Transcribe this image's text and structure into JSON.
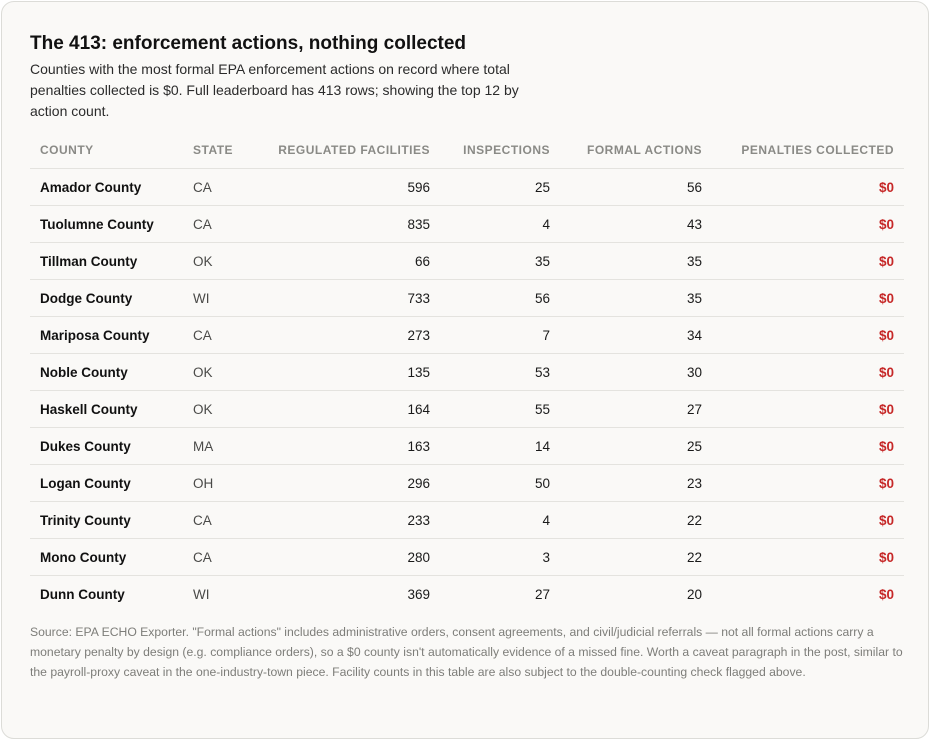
{
  "heading": {
    "title": "The 413: enforcement actions, nothing collected",
    "subtitle": "Counties with the most formal EPA enforcement actions on record where total penalties collected is $0. Full leaderboard has 413 rows; showing the top 12 by action count."
  },
  "table": {
    "columns": [
      "COUNTY",
      "STATE",
      "REGULATED FACILITIES",
      "INSPECTIONS",
      "FORMAL ACTIONS",
      "PENALTIES COLLECTED"
    ],
    "rows": [
      {
        "county": "Amador County",
        "state": "CA",
        "facilities": "596",
        "inspections": "25",
        "formal_actions": "56",
        "penalties": "$0"
      },
      {
        "county": "Tuolumne County",
        "state": "CA",
        "facilities": "835",
        "inspections": "4",
        "formal_actions": "43",
        "penalties": "$0"
      },
      {
        "county": "Tillman County",
        "state": "OK",
        "facilities": "66",
        "inspections": "35",
        "formal_actions": "35",
        "penalties": "$0"
      },
      {
        "county": "Dodge County",
        "state": "WI",
        "facilities": "733",
        "inspections": "56",
        "formal_actions": "35",
        "penalties": "$0"
      },
      {
        "county": "Mariposa County",
        "state": "CA",
        "facilities": "273",
        "inspections": "7",
        "formal_actions": "34",
        "penalties": "$0"
      },
      {
        "county": "Noble County",
        "state": "OK",
        "facilities": "135",
        "inspections": "53",
        "formal_actions": "30",
        "penalties": "$0"
      },
      {
        "county": "Haskell County",
        "state": "OK",
        "facilities": "164",
        "inspections": "55",
        "formal_actions": "27",
        "penalties": "$0"
      },
      {
        "county": "Dukes County",
        "state": "MA",
        "facilities": "163",
        "inspections": "14",
        "formal_actions": "25",
        "penalties": "$0"
      },
      {
        "county": "Logan County",
        "state": "OH",
        "facilities": "296",
        "inspections": "50",
        "formal_actions": "23",
        "penalties": "$0"
      },
      {
        "county": "Trinity County",
        "state": "CA",
        "facilities": "233",
        "inspections": "4",
        "formal_actions": "22",
        "penalties": "$0"
      },
      {
        "county": "Mono County",
        "state": "CA",
        "facilities": "280",
        "inspections": "3",
        "formal_actions": "22",
        "penalties": "$0"
      },
      {
        "county": "Dunn County",
        "state": "WI",
        "facilities": "369",
        "inspections": "27",
        "formal_actions": "20",
        "penalties": "$0"
      }
    ]
  },
  "footnote": "Source: EPA ECHO Exporter. \"Formal actions\" includes administrative orders, consent agreements, and civil/judicial referrals — not all formal actions carry a monetary penalty by design (e.g. compliance orders), so a $0 county isn't automatically evidence of a missed fine. Worth a caveat paragraph in the post, similar to the payroll-proxy caveat in the one-industry-town piece. Facility counts in this table are also subject to the double-counting check flagged above.",
  "colors": {
    "penalty_zero": "#c62828",
    "card_background": "#faf9f7",
    "card_border": "#dcdcd8",
    "header_text": "#8a8a86",
    "row_divider": "#e4e3df"
  }
}
